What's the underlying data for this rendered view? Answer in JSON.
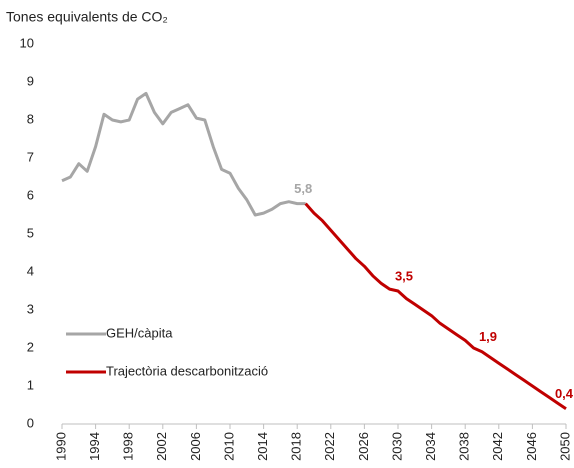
{
  "chart_data": {
    "type": "line",
    "y_axis_label": "Tones equivalents de CO₂",
    "xlim": [
      1990,
      2050
    ],
    "xticks": [
      1990,
      1994,
      1998,
      2002,
      2006,
      2010,
      2014,
      2018,
      2022,
      2026,
      2030,
      2034,
      2038,
      2042,
      2046,
      2050
    ],
    "ylim": [
      0,
      10
    ],
    "yticks": [
      0,
      1,
      2,
      3,
      4,
      5,
      6,
      7,
      8,
      9,
      10
    ],
    "grid": false,
    "legend": "lower left",
    "series": [
      {
        "name": "GEH/càpita",
        "color": "#a6a6a6",
        "x": [
          1990,
          1991,
          1992,
          1993,
          1994,
          1995,
          1996,
          1997,
          1998,
          1999,
          2000,
          2001,
          2002,
          2003,
          2004,
          2005,
          2006,
          2007,
          2008,
          2009,
          2010,
          2011,
          2012,
          2013,
          2014,
          2015,
          2016,
          2017,
          2018,
          2019
        ],
        "values": [
          6.4,
          6.5,
          6.85,
          6.65,
          7.3,
          8.15,
          8.0,
          7.95,
          8.0,
          8.55,
          8.7,
          8.2,
          7.9,
          8.2,
          8.3,
          8.4,
          8.05,
          8.0,
          7.3,
          6.7,
          6.6,
          6.2,
          5.9,
          5.5,
          5.55,
          5.65,
          5.8,
          5.85,
          5.8,
          5.8
        ],
        "value_labels": [
          null,
          null,
          null,
          null,
          null,
          null,
          null,
          null,
          null,
          null,
          null,
          null,
          null,
          null,
          null,
          null,
          null,
          null,
          null,
          null,
          null,
          null,
          null,
          null,
          null,
          null,
          null,
          null,
          "5,8",
          null
        ]
      },
      {
        "name": "Trajectòria descarbonització",
        "color": "#c00000",
        "x": [
          2019,
          2020,
          2021,
          2022,
          2023,
          2024,
          2025,
          2026,
          2027,
          2028,
          2029,
          2030,
          2031,
          2032,
          2033,
          2034,
          2035,
          2036,
          2037,
          2038,
          2039,
          2040,
          2041,
          2042,
          2043,
          2044,
          2045,
          2046,
          2047,
          2048,
          2049,
          2050
        ],
        "values": [
          5.8,
          5.55,
          5.35,
          5.1,
          4.85,
          4.6,
          4.35,
          4.15,
          3.9,
          3.7,
          3.55,
          3.5,
          3.3,
          3.15,
          3.0,
          2.85,
          2.65,
          2.5,
          2.35,
          2.2,
          2.0,
          1.9,
          1.75,
          1.6,
          1.45,
          1.3,
          1.15,
          1.0,
          0.85,
          0.7,
          0.55,
          0.4
        ],
        "value_labels": [
          null,
          null,
          null,
          null,
          null,
          null,
          null,
          null,
          null,
          null,
          null,
          "3,5",
          null,
          null,
          null,
          null,
          null,
          null,
          null,
          null,
          null,
          "1,9",
          null,
          null,
          null,
          null,
          null,
          null,
          null,
          null,
          null,
          "0,4"
        ]
      }
    ]
  }
}
